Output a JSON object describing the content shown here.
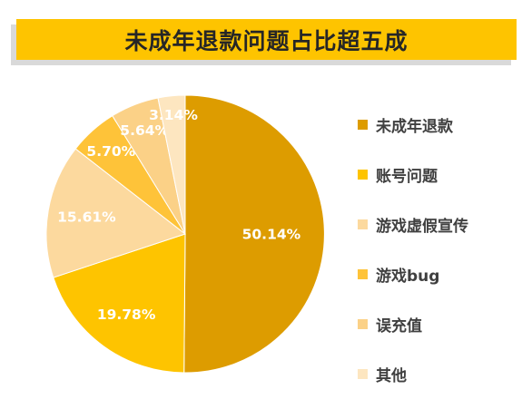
{
  "chart_data": {
    "type": "pie",
    "title": "未成年退款问题占比超五成",
    "legend_position": "right",
    "slices": [
      {
        "name": "未成年退款",
        "value": 50.14,
        "label": "50.14%",
        "color": "#dd9c00"
      },
      {
        "name": "账号问题",
        "value": 19.78,
        "label": "19.78%",
        "color": "#fec400"
      },
      {
        "name": "游戏虚假宣传",
        "value": 15.61,
        "label": "15.61%",
        "color": "#fcd99e"
      },
      {
        "name": "游戏bug",
        "value": 5.7,
        "label": "5.70%",
        "color": "#fec339"
      },
      {
        "name": "误充值",
        "value": 5.64,
        "label": "5.64%",
        "color": "#fbd187"
      },
      {
        "name": "其他",
        "value": 3.14,
        "label": "3.14%",
        "color": "#fde6c0"
      }
    ]
  }
}
